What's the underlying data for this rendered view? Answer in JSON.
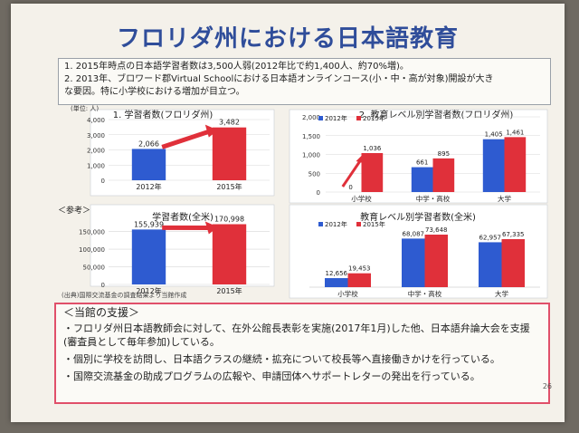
{
  "title": "フロリダ州における日本語教育",
  "summary": {
    "line1": "1. 2015年時点の日本語学習者数は3,500人弱(2012年比で約1,400人、約70%増)。",
    "line2": "2. 2013年、ブロワード郡Virtual Schoolにおける日本語オンラインコース(小・中・高が対象)開設が大き",
    "line3": "な要因。特に小学校における増加が目立つ。"
  },
  "reference_label": "＜参考＞",
  "source_note": "(出典)国際交流基金の調査結果より当館作成",
  "support": {
    "heading": "＜当館の支援＞",
    "items": [
      "・フロリダ州日本語教師会に対して、在外公館長表彰を実施(2017年1月)した他、日本語弁論大会を支援(審査員として毎年参加)している。",
      "・個別に学校を訪問し、日本語クラスの継続・拡充について校長等へ直接働きかけを行っている。",
      "・国際交流基金の助成プログラムの広報や、申請団体へサポートレターの発出を行っている。"
    ]
  },
  "page_number": "26",
  "colors": {
    "y2012": "#2e5bd0",
    "y2015": "#e0303a",
    "arrow": "#e0303a",
    "title": "#2f4d9a",
    "border": "#e0506a"
  },
  "chart_data": [
    {
      "type": "bar",
      "title": "1. 学習者数(フロリダ州)",
      "ylabel": "(単位: 人)",
      "categories": [
        "2012年",
        "2015年"
      ],
      "values": [
        2066,
        3482
      ],
      "value_labels": [
        "2,066",
        "3,482"
      ],
      "yticks": [
        "0",
        "1,000",
        "2,000",
        "3,000",
        "4,000"
      ],
      "ylim": [
        0,
        4000
      ]
    },
    {
      "type": "bar",
      "title": "2. 教育レベル別学習者数(フロリダ州)",
      "categories": [
        "小学校",
        "中学・高校",
        "大学"
      ],
      "series": [
        {
          "name": "2012年",
          "values": [
            0,
            661,
            1405
          ],
          "value_labels": [
            "0",
            "661",
            "1,405"
          ]
        },
        {
          "name": "2015年",
          "values": [
            1036,
            895,
            1461
          ],
          "value_labels": [
            "1,036",
            "895",
            "1,461"
          ]
        }
      ],
      "yticks": [
        "0",
        "500",
        "1,000",
        "1,500",
        "2,000"
      ],
      "ylim": [
        0,
        2000
      ]
    },
    {
      "type": "bar",
      "title": "学習者数(全米)",
      "categories": [
        "2012年",
        "2015年"
      ],
      "values": [
        155939,
        170998
      ],
      "value_labels": [
        "155,939",
        "170,998"
      ],
      "yticks": [
        "0",
        "50,000",
        "100,000",
        "150,000"
      ],
      "ylim": [
        0,
        180000
      ]
    },
    {
      "type": "bar",
      "title": "教育レベル別学習者数(全米)",
      "categories": [
        "小学校",
        "中学・高校",
        "大学"
      ],
      "series": [
        {
          "name": "2012年",
          "values": [
            12656,
            68087,
            62957
          ],
          "value_labels": [
            "12,656",
            "68,087",
            "62,957"
          ]
        },
        {
          "name": "2015年",
          "values": [
            19453,
            73648,
            67335
          ],
          "value_labels": [
            "19,453",
            "73,648",
            "67,335"
          ]
        }
      ],
      "ylim": [
        0,
        80000
      ]
    }
  ]
}
